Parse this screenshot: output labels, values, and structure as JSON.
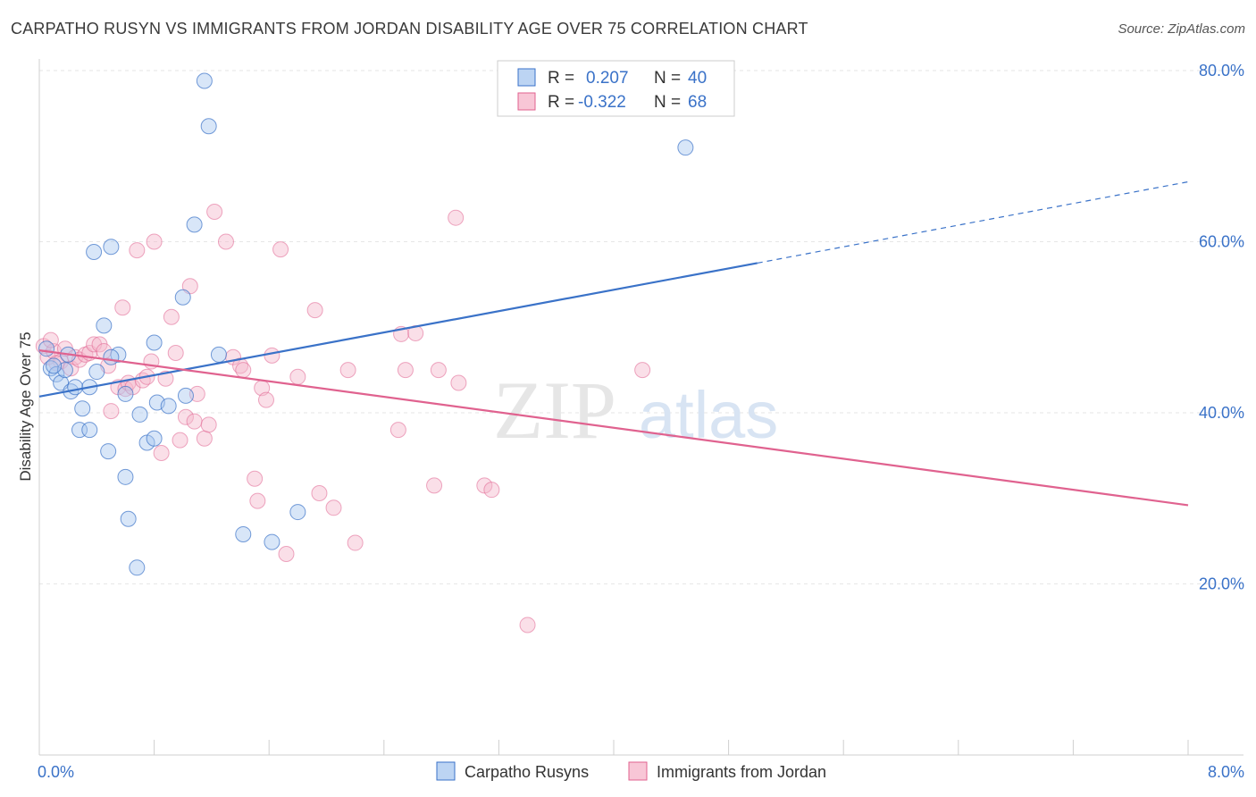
{
  "title": "CARPATHO RUSYN VS IMMIGRANTS FROM JORDAN DISABILITY AGE OVER 75 CORRELATION CHART",
  "source": "Source: ZipAtlas.com",
  "watermark": {
    "zip": "ZIP",
    "atlas": "atlas"
  },
  "stats": {
    "r_label": "R =",
    "n_label": "N =",
    "blue": {
      "r": "0.207",
      "n": "40"
    },
    "pink": {
      "r": "-0.322",
      "n": "68"
    }
  },
  "colors": {
    "blue": "#3a72c8",
    "pink": "#e0628f",
    "blue_fill": "#a8c8f0",
    "pink_fill": "#f5b8cc"
  },
  "chart_data": {
    "type": "scatter",
    "ylabel": "Disability Age Over 75",
    "xlim": [
      0,
      8
    ],
    "ylim": [
      0,
      80
    ],
    "x_tick_labels": [
      "0.0%",
      "8.0%"
    ],
    "y_ticks": [
      20,
      40,
      60,
      80
    ],
    "y_tick_labels": [
      "20.0%",
      "40.0%",
      "60.0%",
      "80.0%"
    ],
    "grid": true,
    "legend": [
      "Carpatho Rusyns",
      "Immigrants from Jordan"
    ],
    "series": [
      {
        "name": "Carpatho Rusyns",
        "color": "#3a72c8",
        "trend": {
          "x0": 0,
          "y0": 41.9,
          "x1": 5.0,
          "y1": 57.5,
          "dash_to_x": 8.0,
          "dash_to_y": 67.0
        },
        "points": [
          [
            0.05,
            47.5
          ],
          [
            0.08,
            45.2
          ],
          [
            0.12,
            44.5
          ],
          [
            0.15,
            43.5
          ],
          [
            0.18,
            45.0
          ],
          [
            0.2,
            46.8
          ],
          [
            0.22,
            42.5
          ],
          [
            0.25,
            43.0
          ],
          [
            0.28,
            38.0
          ],
          [
            0.3,
            40.5
          ],
          [
            0.35,
            38.0
          ],
          [
            0.38,
            58.8
          ],
          [
            0.45,
            50.2
          ],
          [
            0.48,
            35.5
          ],
          [
            0.5,
            59.4
          ],
          [
            0.55,
            46.8
          ],
          [
            0.6,
            32.5
          ],
          [
            0.62,
            27.6
          ],
          [
            0.68,
            21.9
          ],
          [
            0.7,
            39.8
          ],
          [
            0.75,
            36.5
          ],
          [
            0.8,
            48.2
          ],
          [
            0.8,
            37.0
          ],
          [
            0.82,
            41.2
          ],
          [
            0.9,
            40.8
          ],
          [
            1.0,
            53.5
          ],
          [
            1.02,
            42.0
          ],
          [
            1.08,
            62.0
          ],
          [
            1.15,
            78.8
          ],
          [
            1.18,
            73.5
          ],
          [
            1.25,
            46.8
          ],
          [
            1.42,
            25.8
          ],
          [
            1.62,
            24.9
          ],
          [
            1.8,
            28.4
          ],
          [
            4.5,
            71.0
          ],
          [
            0.6,
            42.2
          ],
          [
            0.4,
            44.8
          ],
          [
            0.35,
            43.0
          ],
          [
            0.5,
            46.5
          ],
          [
            0.1,
            45.5
          ]
        ]
      },
      {
        "name": "Immigrants from Jordan",
        "color": "#e0628f",
        "trend": {
          "x0": 0,
          "y0": 47.3,
          "x1": 8.0,
          "y1": 29.2
        },
        "points": [
          [
            0.03,
            47.8
          ],
          [
            0.06,
            46.5
          ],
          [
            0.1,
            47.2
          ],
          [
            0.15,
            46.0
          ],
          [
            0.18,
            47.5
          ],
          [
            0.22,
            45.2
          ],
          [
            0.25,
            46.5
          ],
          [
            0.28,
            46.2
          ],
          [
            0.32,
            46.8
          ],
          [
            0.35,
            47.0
          ],
          [
            0.38,
            48.0
          ],
          [
            0.42,
            48.0
          ],
          [
            0.45,
            47.2
          ],
          [
            0.48,
            45.5
          ],
          [
            0.5,
            40.2
          ],
          [
            0.55,
            43.0
          ],
          [
            0.58,
            52.3
          ],
          [
            0.6,
            42.8
          ],
          [
            0.62,
            43.5
          ],
          [
            0.65,
            43.0
          ],
          [
            0.68,
            59.0
          ],
          [
            0.72,
            43.8
          ],
          [
            0.75,
            44.2
          ],
          [
            0.78,
            46.0
          ],
          [
            0.8,
            60.0
          ],
          [
            0.85,
            35.3
          ],
          [
            0.88,
            44.0
          ],
          [
            0.92,
            51.2
          ],
          [
            0.95,
            47.0
          ],
          [
            0.98,
            36.8
          ],
          [
            1.02,
            39.5
          ],
          [
            1.05,
            54.8
          ],
          [
            1.08,
            39.0
          ],
          [
            1.1,
            42.2
          ],
          [
            1.15,
            37.0
          ],
          [
            1.18,
            38.6
          ],
          [
            1.22,
            63.5
          ],
          [
            1.3,
            60.0
          ],
          [
            1.35,
            46.5
          ],
          [
            1.4,
            45.5
          ],
          [
            1.42,
            45.0
          ],
          [
            1.5,
            32.3
          ],
          [
            1.52,
            29.7
          ],
          [
            1.55,
            42.9
          ],
          [
            1.58,
            41.5
          ],
          [
            1.62,
            46.7
          ],
          [
            1.68,
            59.1
          ],
          [
            1.72,
            23.5
          ],
          [
            1.8,
            44.2
          ],
          [
            1.92,
            52.0
          ],
          [
            1.95,
            30.6
          ],
          [
            2.05,
            28.9
          ],
          [
            2.15,
            45.0
          ],
          [
            2.2,
            24.8
          ],
          [
            2.5,
            38.0
          ],
          [
            2.52,
            49.2
          ],
          [
            2.55,
            45.0
          ],
          [
            2.62,
            49.3
          ],
          [
            2.75,
            31.5
          ],
          [
            2.78,
            45.0
          ],
          [
            2.9,
            62.8
          ],
          [
            2.92,
            43.5
          ],
          [
            3.1,
            31.5
          ],
          [
            3.15,
            31.0
          ],
          [
            3.4,
            15.2
          ],
          [
            4.2,
            45.0
          ],
          [
            0.08,
            48.5
          ],
          [
            0.12,
            45.8
          ]
        ]
      }
    ]
  }
}
